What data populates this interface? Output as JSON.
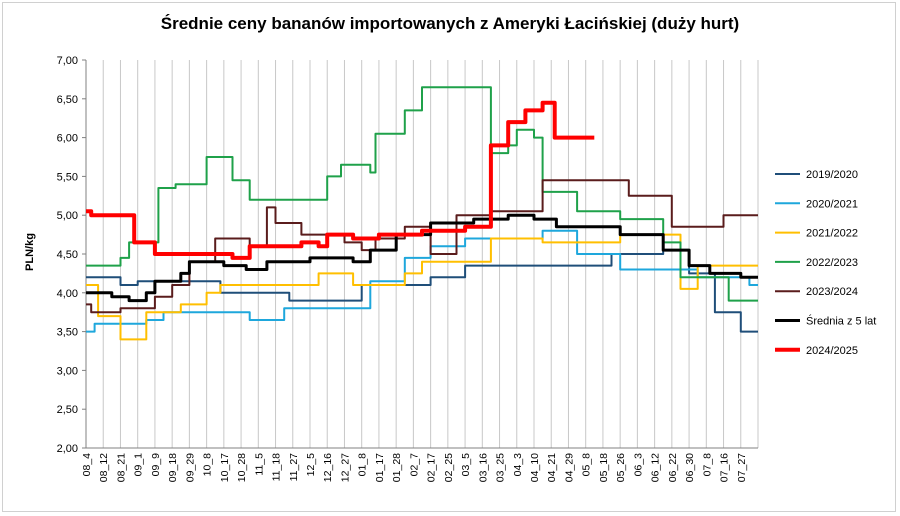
{
  "chart_data": {
    "type": "line",
    "title": "Średnie ceny bananów importowanych z Ameryki Łacińskiej (duży hurt)",
    "xlabel": "",
    "ylabel": "PLN/kg",
    "ylim": [
      2.0,
      7.0
    ],
    "yticks": [
      "2,00",
      "2,50",
      "3,00",
      "3,50",
      "4,00",
      "4,50",
      "5,00",
      "5,50",
      "6,00",
      "6,50",
      "7,00"
    ],
    "xtick_labels": [
      "08_4",
      "08_12",
      "08_21",
      "09_1",
      "09_9",
      "09_18",
      "09_29",
      "10_8",
      "10_17",
      "10_28",
      "11_5",
      "11_18",
      "11_27",
      "12_5",
      "12_16",
      "12_27",
      "01_8",
      "01_17",
      "01_28",
      "02_7",
      "02_17",
      "02_25",
      "03_5",
      "03_16",
      "03_25",
      "04_3",
      "04_10",
      "04_21",
      "04_29",
      "05_8",
      "05_18",
      "05_26",
      "06_3",
      "06_12",
      "06_22",
      "06_30",
      "07_8",
      "07_16",
      "07_27"
    ],
    "x_count": 39,
    "grid": "vertical",
    "legend_position": "right",
    "series": [
      {
        "name": "2019/2020",
        "color": "#1f4e79",
        "width": 2,
        "points": [
          [
            0,
            4.2
          ],
          [
            2,
            4.2
          ],
          [
            2,
            4.1
          ],
          [
            3,
            4.1
          ],
          [
            3,
            4.15
          ],
          [
            7.8,
            4.15
          ],
          [
            7.8,
            4.0
          ],
          [
            11.8,
            4.0
          ],
          [
            11.8,
            3.9
          ],
          [
            16,
            3.9
          ],
          [
            16,
            4.1
          ],
          [
            20,
            4.1
          ],
          [
            20,
            4.2
          ],
          [
            22,
            4.2
          ],
          [
            22,
            4.35
          ],
          [
            30.5,
            4.35
          ],
          [
            30.5,
            4.5
          ],
          [
            33.5,
            4.5
          ],
          [
            33.5,
            4.55
          ],
          [
            35,
            4.55
          ],
          [
            35,
            4.25
          ],
          [
            36.5,
            4.25
          ],
          [
            36.5,
            3.75
          ],
          [
            38,
            3.75
          ],
          [
            38,
            3.5
          ],
          [
            39,
            3.5
          ]
        ]
      },
      {
        "name": "2020/2021",
        "color": "#1ea7dc",
        "width": 2,
        "points": [
          [
            0,
            3.5
          ],
          [
            0.5,
            3.5
          ],
          [
            0.5,
            3.6
          ],
          [
            3.5,
            3.6
          ],
          [
            3.5,
            3.65
          ],
          [
            4.5,
            3.65
          ],
          [
            4.5,
            3.75
          ],
          [
            9.5,
            3.75
          ],
          [
            9.5,
            3.65
          ],
          [
            11.5,
            3.65
          ],
          [
            11.5,
            3.8
          ],
          [
            16.5,
            3.8
          ],
          [
            16.5,
            4.15
          ],
          [
            18.5,
            4.15
          ],
          [
            18.5,
            4.45
          ],
          [
            20,
            4.45
          ],
          [
            20,
            4.6
          ],
          [
            22,
            4.6
          ],
          [
            22,
            4.7
          ],
          [
            26.5,
            4.7
          ],
          [
            26.5,
            4.8
          ],
          [
            28.5,
            4.8
          ],
          [
            28.5,
            4.5
          ],
          [
            31,
            4.5
          ],
          [
            31,
            4.3
          ],
          [
            35.5,
            4.3
          ],
          [
            35.5,
            4.2
          ],
          [
            38.5,
            4.2
          ],
          [
            38.5,
            4.1
          ],
          [
            39,
            4.1
          ]
        ]
      },
      {
        "name": "2021/2022",
        "color": "#ffbf00",
        "width": 2,
        "points": [
          [
            0,
            4.1
          ],
          [
            0.7,
            4.1
          ],
          [
            0.7,
            3.7
          ],
          [
            2,
            3.7
          ],
          [
            2,
            3.4
          ],
          [
            3.5,
            3.4
          ],
          [
            3.5,
            3.75
          ],
          [
            5.5,
            3.75
          ],
          [
            5.5,
            3.85
          ],
          [
            7,
            3.85
          ],
          [
            7,
            4.0
          ],
          [
            7.8,
            4.0
          ],
          [
            7.8,
            4.1
          ],
          [
            13.5,
            4.1
          ],
          [
            13.5,
            4.25
          ],
          [
            15.5,
            4.25
          ],
          [
            15.5,
            4.1
          ],
          [
            18.5,
            4.1
          ],
          [
            18.5,
            4.25
          ],
          [
            19.5,
            4.25
          ],
          [
            19.5,
            4.4
          ],
          [
            23.5,
            4.4
          ],
          [
            23.5,
            4.7
          ],
          [
            26.5,
            4.7
          ],
          [
            26.5,
            4.65
          ],
          [
            31,
            4.65
          ],
          [
            31,
            4.75
          ],
          [
            34.5,
            4.75
          ],
          [
            34.5,
            4.05
          ],
          [
            35.5,
            4.05
          ],
          [
            35.5,
            4.35
          ],
          [
            39,
            4.35
          ]
        ]
      },
      {
        "name": "2022/2023",
        "color": "#1fa14a",
        "width": 2,
        "points": [
          [
            0,
            4.35
          ],
          [
            2,
            4.35
          ],
          [
            2,
            4.45
          ],
          [
            2.5,
            4.45
          ],
          [
            2.5,
            4.65
          ],
          [
            4.2,
            4.65
          ],
          [
            4.2,
            5.35
          ],
          [
            5.2,
            5.35
          ],
          [
            5.2,
            5.4
          ],
          [
            7,
            5.4
          ],
          [
            7,
            5.75
          ],
          [
            8.5,
            5.75
          ],
          [
            8.5,
            5.45
          ],
          [
            9.5,
            5.45
          ],
          [
            9.5,
            5.2
          ],
          [
            14,
            5.2
          ],
          [
            14,
            5.5
          ],
          [
            14.8,
            5.5
          ],
          [
            14.8,
            5.65
          ],
          [
            16.5,
            5.65
          ],
          [
            16.5,
            5.55
          ],
          [
            16.8,
            5.55
          ],
          [
            16.8,
            6.05
          ],
          [
            18.5,
            6.05
          ],
          [
            18.5,
            6.35
          ],
          [
            19.5,
            6.35
          ],
          [
            19.5,
            6.65
          ],
          [
            23.5,
            6.65
          ],
          [
            23.5,
            5.8
          ],
          [
            24.5,
            5.8
          ],
          [
            24.5,
            5.9
          ],
          [
            25,
            5.9
          ],
          [
            25,
            6.1
          ],
          [
            26,
            6.1
          ],
          [
            26,
            6.0
          ],
          [
            26.5,
            6.0
          ],
          [
            26.5,
            5.3
          ],
          [
            28.5,
            5.3
          ],
          [
            28.5,
            5.05
          ],
          [
            31,
            5.05
          ],
          [
            31,
            4.95
          ],
          [
            33.5,
            4.95
          ],
          [
            33.5,
            4.65
          ],
          [
            34.5,
            4.65
          ],
          [
            34.5,
            4.2
          ],
          [
            37.3,
            4.2
          ],
          [
            37.3,
            3.9
          ],
          [
            39,
            3.9
          ]
        ]
      },
      {
        "name": "2023/2024",
        "color": "#5a1c1c",
        "width": 2,
        "points": [
          [
            0,
            3.85
          ],
          [
            0.3,
            3.85
          ],
          [
            0.3,
            3.75
          ],
          [
            2,
            3.75
          ],
          [
            2,
            3.8
          ],
          [
            4,
            3.8
          ],
          [
            4,
            3.95
          ],
          [
            5,
            3.95
          ],
          [
            5,
            4.1
          ],
          [
            6,
            4.1
          ],
          [
            6,
            4.4
          ],
          [
            7.5,
            4.4
          ],
          [
            7.5,
            4.7
          ],
          [
            9.5,
            4.7
          ],
          [
            9.5,
            4.6
          ],
          [
            10.5,
            4.6
          ],
          [
            10.5,
            5.1
          ],
          [
            11,
            5.1
          ],
          [
            11,
            4.9
          ],
          [
            12.5,
            4.9
          ],
          [
            12.5,
            4.75
          ],
          [
            15,
            4.75
          ],
          [
            15,
            4.65
          ],
          [
            16,
            4.65
          ],
          [
            16,
            4.55
          ],
          [
            16.8,
            4.55
          ],
          [
            16.8,
            4.7
          ],
          [
            18.5,
            4.7
          ],
          [
            18.5,
            4.85
          ],
          [
            20,
            4.85
          ],
          [
            20,
            4.5
          ],
          [
            21.5,
            4.5
          ],
          [
            21.5,
            5.0
          ],
          [
            23.5,
            5.0
          ],
          [
            23.5,
            5.05
          ],
          [
            26.5,
            5.05
          ],
          [
            26.5,
            5.45
          ],
          [
            31.5,
            5.45
          ],
          [
            31.5,
            5.25
          ],
          [
            34,
            5.25
          ],
          [
            34,
            4.85
          ],
          [
            37,
            4.85
          ],
          [
            37,
            5.0
          ],
          [
            39,
            5.0
          ]
        ]
      },
      {
        "name": "Średnia z 5 lat",
        "color": "#000000",
        "width": 3,
        "points": [
          [
            0,
            4.0
          ],
          [
            1.5,
            4.0
          ],
          [
            1.5,
            3.95
          ],
          [
            2.5,
            3.95
          ],
          [
            2.5,
            3.9
          ],
          [
            3.5,
            3.9
          ],
          [
            3.5,
            4.0
          ],
          [
            4,
            4.0
          ],
          [
            4,
            4.15
          ],
          [
            5.5,
            4.15
          ],
          [
            5.5,
            4.25
          ],
          [
            6,
            4.25
          ],
          [
            6,
            4.4
          ],
          [
            8,
            4.4
          ],
          [
            8,
            4.35
          ],
          [
            9.3,
            4.35
          ],
          [
            9.3,
            4.3
          ],
          [
            10.5,
            4.3
          ],
          [
            10.5,
            4.4
          ],
          [
            13,
            4.4
          ],
          [
            13,
            4.45
          ],
          [
            15.5,
            4.45
          ],
          [
            15.5,
            4.4
          ],
          [
            16.5,
            4.4
          ],
          [
            16.5,
            4.55
          ],
          [
            18,
            4.55
          ],
          [
            18,
            4.75
          ],
          [
            20,
            4.75
          ],
          [
            20,
            4.9
          ],
          [
            22.5,
            4.9
          ],
          [
            22.5,
            4.95
          ],
          [
            24.5,
            4.95
          ],
          [
            24.5,
            5.0
          ],
          [
            26,
            5.0
          ],
          [
            26,
            4.95
          ],
          [
            27.3,
            4.95
          ],
          [
            27.3,
            4.85
          ],
          [
            31,
            4.85
          ],
          [
            31,
            4.75
          ],
          [
            33.5,
            4.75
          ],
          [
            33.5,
            4.55
          ],
          [
            35,
            4.55
          ],
          [
            35,
            4.35
          ],
          [
            36.2,
            4.35
          ],
          [
            36.2,
            4.25
          ],
          [
            38,
            4.25
          ],
          [
            38,
            4.2
          ],
          [
            39,
            4.2
          ]
        ]
      },
      {
        "name": "2024/2025",
        "color": "#ff0000",
        "width": 4,
        "points": [
          [
            0,
            5.05
          ],
          [
            0.3,
            5.05
          ],
          [
            0.3,
            5.0
          ],
          [
            2.8,
            5.0
          ],
          [
            2.8,
            4.65
          ],
          [
            4,
            4.65
          ],
          [
            4,
            4.5
          ],
          [
            8.5,
            4.5
          ],
          [
            8.5,
            4.45
          ],
          [
            9.5,
            4.45
          ],
          [
            9.5,
            4.6
          ],
          [
            12.5,
            4.6
          ],
          [
            12.5,
            4.65
          ],
          [
            13.5,
            4.65
          ],
          [
            13.5,
            4.6
          ],
          [
            14,
            4.6
          ],
          [
            14,
            4.75
          ],
          [
            15.5,
            4.75
          ],
          [
            15.5,
            4.7
          ],
          [
            17,
            4.7
          ],
          [
            17,
            4.75
          ],
          [
            19.5,
            4.75
          ],
          [
            19.5,
            4.8
          ],
          [
            22,
            4.8
          ],
          [
            22,
            4.85
          ],
          [
            23.5,
            4.85
          ],
          [
            23.5,
            5.9
          ],
          [
            24.5,
            5.9
          ],
          [
            24.5,
            6.2
          ],
          [
            25.5,
            6.2
          ],
          [
            25.5,
            6.35
          ],
          [
            26.5,
            6.35
          ],
          [
            26.5,
            6.45
          ],
          [
            27.2,
            6.45
          ],
          [
            27.2,
            6.0
          ],
          [
            29.5,
            6.0
          ]
        ]
      }
    ]
  }
}
